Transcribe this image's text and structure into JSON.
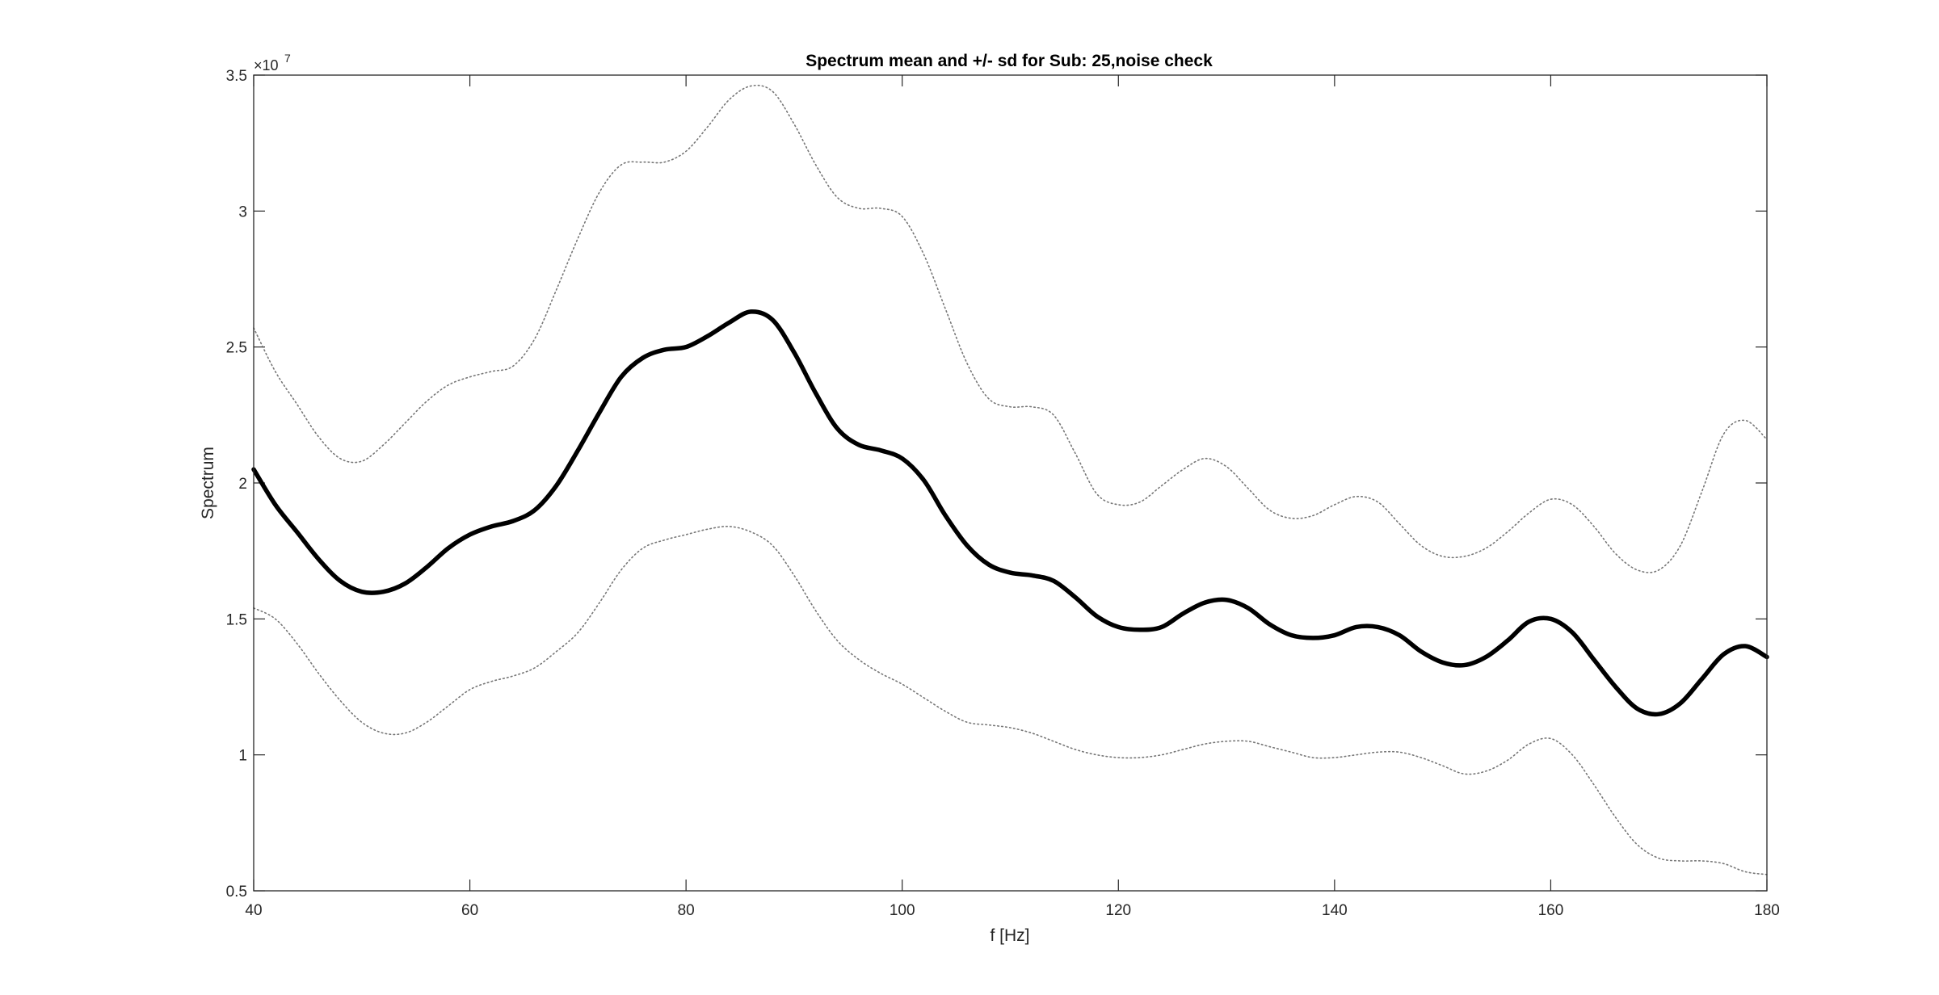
{
  "chart_data": {
    "type": "line",
    "title": "Spectrum mean and +/- sd for Sub: 25,noise check",
    "xlabel": "f [Hz]",
    "ylabel": "Spectrum",
    "y_exponent_base": "×10",
    "y_exponent_power": "7",
    "xlim": [
      40,
      180
    ],
    "ylim": [
      0.5,
      3.5
    ],
    "y_scale_factor": 10000000,
    "xticks": [
      40,
      60,
      80,
      100,
      120,
      140,
      160,
      180
    ],
    "xtick_labels": [
      "40",
      "60",
      "80",
      "100",
      "120",
      "140",
      "160",
      "180"
    ],
    "yticks": [
      0.5,
      1,
      1.5,
      2,
      2.5,
      3,
      3.5
    ],
    "ytick_labels": [
      "0.5",
      "1",
      "1.5",
      "2",
      "2.5",
      "3",
      "3.5"
    ],
    "grid": false,
    "legend": "none",
    "x": [
      40,
      42,
      44,
      46,
      48,
      50,
      52,
      54,
      56,
      58,
      60,
      62,
      64,
      66,
      68,
      70,
      72,
      74,
      76,
      78,
      80,
      82,
      84,
      86,
      88,
      90,
      92,
      94,
      96,
      98,
      100,
      102,
      104,
      106,
      108,
      110,
      112,
      114,
      116,
      118,
      120,
      122,
      124,
      126,
      128,
      130,
      132,
      134,
      136,
      138,
      140,
      142,
      144,
      146,
      148,
      150,
      152,
      154,
      156,
      158,
      160,
      162,
      164,
      166,
      168,
      170,
      172,
      174,
      176,
      178,
      180
    ],
    "series": [
      {
        "style": "mean",
        "color": "#000000",
        "values": [
          2.05,
          1.92,
          1.82,
          1.72,
          1.64,
          1.6,
          1.6,
          1.63,
          1.69,
          1.76,
          1.81,
          1.84,
          1.86,
          1.9,
          1.99,
          2.12,
          2.26,
          2.39,
          2.46,
          2.49,
          2.5,
          2.54,
          2.59,
          2.63,
          2.6,
          2.48,
          2.33,
          2.2,
          2.14,
          2.12,
          2.09,
          2.01,
          1.88,
          1.77,
          1.7,
          1.67,
          1.66,
          1.64,
          1.58,
          1.51,
          1.47,
          1.46,
          1.47,
          1.52,
          1.56,
          1.57,
          1.54,
          1.48,
          1.44,
          1.43,
          1.44,
          1.47,
          1.47,
          1.44,
          1.38,
          1.34,
          1.33,
          1.36,
          1.42,
          1.49,
          1.5,
          1.45,
          1.35,
          1.25,
          1.17,
          1.15,
          1.19,
          1.28,
          1.37,
          1.4,
          1.36
        ]
      },
      {
        "style": "mean+sd",
        "color": "#777777",
        "values": [
          2.57,
          2.41,
          2.29,
          2.17,
          2.09,
          2.08,
          2.14,
          2.22,
          2.3,
          2.36,
          2.39,
          2.41,
          2.43,
          2.53,
          2.71,
          2.9,
          3.07,
          3.17,
          3.18,
          3.18,
          3.22,
          3.31,
          3.41,
          3.46,
          3.44,
          3.32,
          3.17,
          3.05,
          3.01,
          3.01,
          2.98,
          2.84,
          2.64,
          2.44,
          2.31,
          2.28,
          2.28,
          2.25,
          2.11,
          1.96,
          1.92,
          1.93,
          1.99,
          2.05,
          2.09,
          2.06,
          1.98,
          1.9,
          1.87,
          1.88,
          1.92,
          1.95,
          1.93,
          1.85,
          1.77,
          1.73,
          1.73,
          1.76,
          1.82,
          1.89,
          1.94,
          1.92,
          1.84,
          1.74,
          1.68,
          1.68,
          1.77,
          1.97,
          2.18,
          2.23,
          2.16
        ]
      },
      {
        "style": "mean-sd",
        "color": "#777777",
        "values": [
          1.54,
          1.5,
          1.41,
          1.3,
          1.2,
          1.12,
          1.08,
          1.08,
          1.12,
          1.18,
          1.24,
          1.27,
          1.29,
          1.32,
          1.38,
          1.45,
          1.56,
          1.68,
          1.76,
          1.79,
          1.81,
          1.83,
          1.84,
          1.82,
          1.77,
          1.66,
          1.53,
          1.42,
          1.35,
          1.3,
          1.26,
          1.21,
          1.16,
          1.12,
          1.11,
          1.1,
          1.08,
          1.05,
          1.02,
          1.0,
          0.99,
          0.99,
          1.0,
          1.02,
          1.04,
          1.05,
          1.05,
          1.03,
          1.01,
          0.99,
          0.99,
          1.0,
          1.01,
          1.01,
          0.99,
          0.96,
          0.93,
          0.94,
          0.98,
          1.04,
          1.06,
          1.0,
          0.89,
          0.77,
          0.67,
          0.62,
          0.61,
          0.61,
          0.6,
          0.57,
          0.56
        ]
      }
    ]
  }
}
